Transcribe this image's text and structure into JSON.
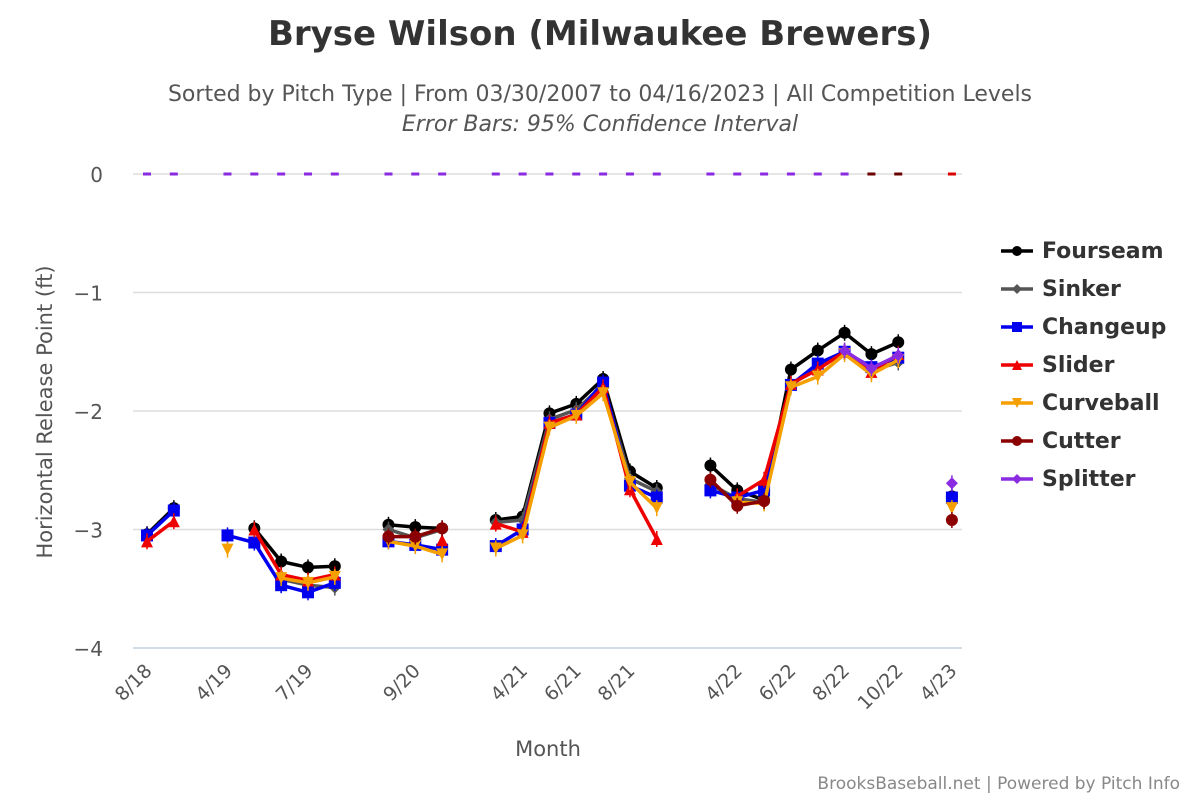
{
  "header": {
    "title": "Bryse Wilson (Milwaukee Brewers)",
    "subtitle": "Sorted by Pitch Type | From 03/30/2007 to 04/16/2023 | All Competition Levels",
    "subtitle2": "Error Bars: 95% Confidence Interval"
  },
  "credits": "BrooksBaseball.net | Powered by Pitch Info",
  "chart_data": {
    "type": "line",
    "title": "Bryse Wilson (Milwaukee Brewers)",
    "xlabel": "Month",
    "ylabel": "Horizontal Release Point (ft)",
    "ylim": [
      -4,
      0
    ],
    "yticks": [
      "0",
      "−1",
      "−2",
      "−3",
      "−4"
    ],
    "ytick_values": [
      0,
      -1,
      -2,
      -3,
      -4
    ],
    "grid": true,
    "legend_position": "right",
    "categories": [
      "8/18",
      "",
      "",
      "4/19",
      "",
      "",
      "7/19",
      "",
      "",
      "",
      "9/20",
      "",
      "",
      "",
      "4/21",
      "",
      "6/21",
      "",
      "8/21",
      "",
      "",
      "",
      "4/22",
      "",
      "6/22",
      "",
      "8/22",
      "",
      "10/22",
      "",
      "4/23"
    ],
    "zero_marker_colors": [
      "#8a2be2",
      "#8a2be2",
      null,
      "#8a2be2",
      "#8a2be2",
      "#8a2be2",
      "#8a2be2",
      "#8a2be2",
      null,
      "#8a2be2",
      "#8a2be2",
      "#8a2be2",
      null,
      "#8a2be2",
      "#8a2be2",
      "#8a2be2",
      "#8a2be2",
      "#8a2be2",
      "#8a2be2",
      "#8a2be2",
      null,
      "#8a2be2",
      "#8a2be2",
      "#8a2be2",
      "#8a2be2",
      "#8a2be2",
      "#8a2be2",
      "#6b0000",
      "#6b0000",
      null,
      "#dd0000"
    ],
    "series": [
      {
        "name": "Fourseam",
        "color": "#000000",
        "marker": "circle",
        "values": [
          -3.04,
          -2.82,
          null,
          null,
          -2.99,
          -3.27,
          -3.32,
          -3.31,
          null,
          -2.96,
          -2.98,
          -2.99,
          null,
          -2.92,
          -2.89,
          -2.02,
          -1.94,
          -1.73,
          -2.51,
          -2.65,
          null,
          -2.46,
          -2.67,
          -2.75,
          -1.65,
          -1.49,
          -1.34,
          -1.52,
          -1.42,
          null,
          -2.72
        ]
      },
      {
        "name": "Sinker",
        "color": "#555555",
        "marker": "diamond",
        "values": [
          null,
          null,
          null,
          null,
          null,
          -3.42,
          -3.47,
          -3.49,
          null,
          -3.0,
          -3.07,
          -3.0,
          null,
          -2.94,
          -2.92,
          -2.07,
          -1.99,
          -1.78,
          -2.57,
          -2.68,
          null,
          -2.62,
          -2.74,
          -2.77,
          -1.78,
          -1.63,
          -1.5,
          -1.66,
          -1.59,
          null,
          -2.78
        ]
      },
      {
        "name": "Changeup",
        "color": "#0000ee",
        "marker": "square",
        "values": [
          -3.05,
          -2.84,
          null,
          -3.05,
          -3.11,
          -3.47,
          -3.53,
          -3.45,
          null,
          -3.1,
          -3.13,
          -3.17,
          null,
          -3.14,
          -3.0,
          -2.1,
          -2.03,
          -1.76,
          -2.63,
          -2.73,
          null,
          -2.67,
          -2.73,
          -2.67,
          -1.78,
          -1.6,
          -1.5,
          -1.63,
          -1.55,
          null,
          -2.73
        ]
      },
      {
        "name": "Slider",
        "color": "#ee0000",
        "marker": "triangle",
        "values": [
          -3.1,
          -2.93,
          null,
          null,
          -3.0,
          -3.38,
          -3.43,
          -3.38,
          null,
          null,
          null,
          -3.09,
          null,
          -2.95,
          -3.02,
          -2.1,
          -2.03,
          -1.8,
          -2.66,
          -3.08,
          null,
          null,
          -2.72,
          -2.58,
          -1.77,
          -1.65,
          -1.5,
          -1.67,
          -1.52,
          null,
          null
        ]
      },
      {
        "name": "Curveball",
        "color": "#f5a000",
        "marker": "triangle-down",
        "values": [
          null,
          null,
          null,
          -3.17,
          null,
          -3.41,
          -3.45,
          -3.4,
          null,
          -3.1,
          -3.14,
          -3.21,
          null,
          -3.16,
          -3.05,
          -2.14,
          -2.04,
          -1.85,
          -2.6,
          -2.82,
          null,
          null,
          -2.77,
          -2.78,
          -1.8,
          -1.71,
          -1.52,
          -1.69,
          -1.57,
          null,
          -2.82
        ]
      },
      {
        "name": "Cutter",
        "color": "#8b0000",
        "marker": "circle",
        "values": [
          null,
          null,
          null,
          null,
          null,
          null,
          null,
          null,
          null,
          -3.06,
          -3.06,
          -2.99,
          null,
          null,
          null,
          null,
          null,
          null,
          null,
          null,
          null,
          -2.58,
          -2.8,
          -2.76,
          null,
          null,
          null,
          null,
          null,
          null,
          -2.92
        ]
      },
      {
        "name": "Splitter",
        "color": "#8a2be2",
        "marker": "diamond",
        "values": [
          null,
          null,
          null,
          null,
          null,
          null,
          null,
          null,
          null,
          null,
          null,
          null,
          null,
          null,
          null,
          null,
          null,
          null,
          null,
          null,
          null,
          null,
          null,
          null,
          null,
          null,
          -1.49,
          -1.64,
          -1.53,
          null,
          -2.61
        ]
      }
    ]
  }
}
